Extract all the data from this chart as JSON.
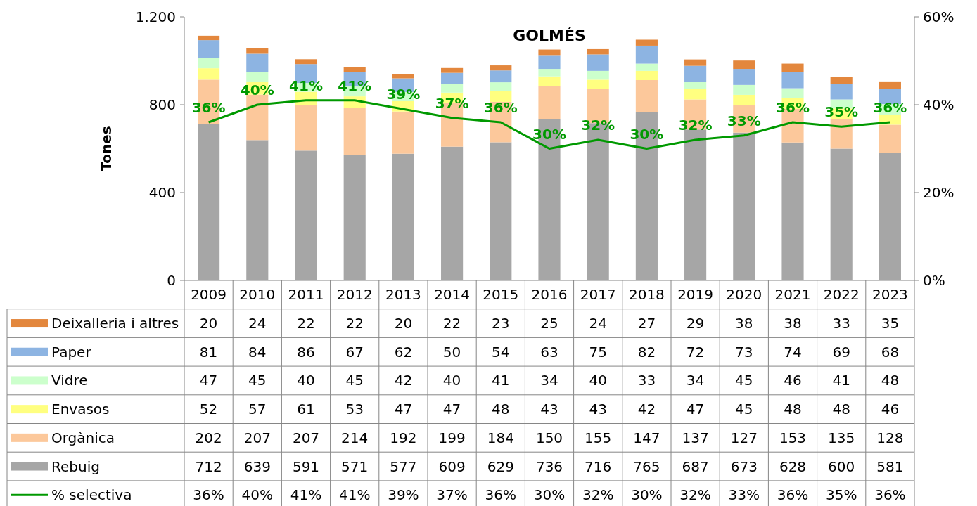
{
  "chart_data": {
    "type": "bar",
    "title": "GOLMÉS",
    "ylabel": "Tones",
    "stacked": true,
    "categories": [
      "2009",
      "2010",
      "2011",
      "2012",
      "2013",
      "2014",
      "2015",
      "2016",
      "2017",
      "2018",
      "2019",
      "2020",
      "2021",
      "2022",
      "2023"
    ],
    "series": [
      {
        "name": "Rebuig",
        "color": "#a6a6a6",
        "values": [
          712,
          639,
          591,
          571,
          577,
          609,
          629,
          736,
          716,
          765,
          687,
          673,
          628,
          600,
          581
        ]
      },
      {
        "name": "Orgànica",
        "color": "#fcc89b",
        "values": [
          202,
          207,
          207,
          214,
          192,
          199,
          184,
          150,
          155,
          147,
          137,
          127,
          153,
          135,
          128
        ]
      },
      {
        "name": "Envasos",
        "color": "#ffff80",
        "values": [
          52,
          57,
          61,
          53,
          47,
          47,
          48,
          43,
          43,
          42,
          47,
          45,
          48,
          48,
          46
        ]
      },
      {
        "name": "Vidre",
        "color": "#ccffcc",
        "values": [
          47,
          45,
          40,
          45,
          42,
          40,
          41,
          34,
          40,
          33,
          34,
          45,
          46,
          41,
          48
        ]
      },
      {
        "name": "Paper",
        "color": "#8db4e2",
        "values": [
          81,
          84,
          86,
          67,
          62,
          50,
          54,
          63,
          75,
          82,
          72,
          73,
          74,
          69,
          68
        ]
      },
      {
        "name": "Deixalleria i altres",
        "color": "#e3873d",
        "values": [
          20,
          24,
          22,
          22,
          20,
          22,
          23,
          25,
          24,
          27,
          29,
          38,
          38,
          33,
          35
        ]
      },
      {
        "name": "% selectiva",
        "type": "line",
        "axis": "y2",
        "color": "#009900",
        "marker": "none",
        "line_style": "solid",
        "values": [
          36,
          40,
          41,
          41,
          39,
          37,
          36,
          30,
          32,
          30,
          32,
          33,
          36,
          35,
          36
        ],
        "value_labels": [
          "36%",
          "40%",
          "41%",
          "41%",
          "39%",
          "37%",
          "36%",
          "30%",
          "32%",
          "30%",
          "32%",
          "33%",
          "36%",
          "35%",
          "36%"
        ]
      }
    ],
    "ylim": [
      0,
      1200
    ],
    "yticks": [
      0,
      400,
      800,
      {
        "value": 1200,
        "label": "1.200"
      }
    ],
    "y2lim": [
      0,
      60
    ],
    "y2ticks": [
      {
        "value": 0,
        "label": "0%"
      },
      {
        "value": 20,
        "label": "20%"
      },
      {
        "value": 40,
        "label": "40%"
      },
      {
        "value": 60,
        "label": "60%"
      }
    ],
    "data_labels": true,
    "legend": "bottom",
    "grid": false
  }
}
